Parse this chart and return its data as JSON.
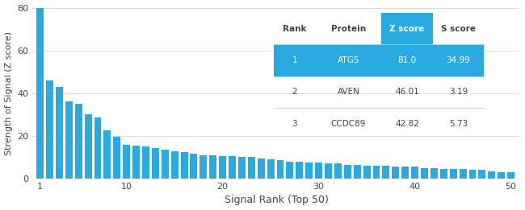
{
  "bar_values": [
    81.0,
    46.01,
    42.82,
    36.0,
    35.0,
    30.0,
    28.5,
    22.5,
    19.5,
    16.0,
    15.5,
    15.0,
    14.5,
    13.5,
    13.0,
    12.5,
    11.5,
    11.0,
    11.0,
    10.5,
    10.5,
    10.0,
    10.0,
    9.5,
    9.0,
    8.5,
    8.0,
    8.0,
    7.5,
    7.5,
    7.0,
    7.0,
    6.5,
    6.5,
    6.0,
    6.0,
    6.0,
    5.5,
    5.5,
    5.5,
    5.0,
    5.0,
    4.5,
    4.5,
    4.5,
    4.0,
    4.0,
    3.5,
    3.0,
    3.0
  ],
  "bar_color": "#29ABE2",
  "xlabel": "Signal Rank (Top 50)",
  "ylabel": "Strength of Signal (Z score)",
  "ylim": [
    0,
    80
  ],
  "yticks": [
    0,
    20,
    40,
    60,
    80
  ],
  "xticks": [
    1,
    10,
    20,
    30,
    40,
    50
  ],
  "grid_color": "#d0d0d0",
  "bg_color": "#ffffff",
  "table_header": [
    "Rank",
    "Protein",
    "Z score",
    "S score"
  ],
  "table_rows": [
    [
      "1",
      "ATG5",
      "81.0",
      "34.99"
    ],
    [
      "2",
      "AVEN",
      "46.01",
      "3.19"
    ],
    [
      "3",
      "CCDC89",
      "42.82",
      "5.73"
    ]
  ],
  "table_highlight_row": 0,
  "table_highlight_color": "#29ABE2",
  "table_header_zscore_color": "#29ABE2",
  "table_text_color_dark": "#444444",
  "table_text_color_white": "#ffffff",
  "table_line_color": "#cccccc"
}
